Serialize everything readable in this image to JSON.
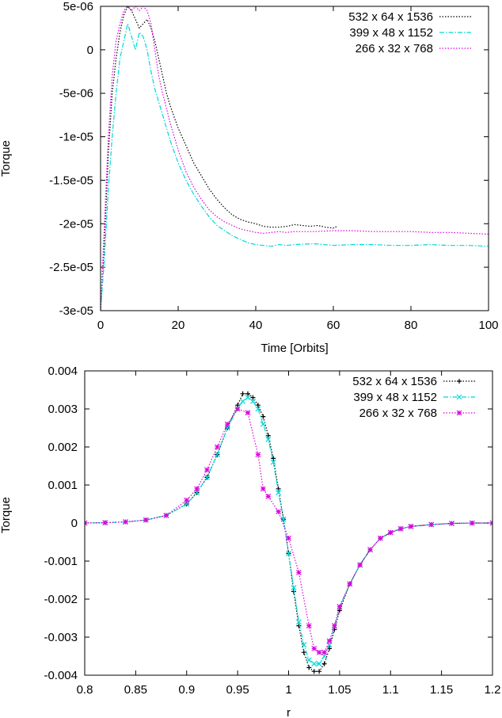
{
  "chart_data": [
    {
      "type": "line",
      "xlabel": "Time [Orbits]",
      "ylabel": "Torque",
      "xlim": [
        0,
        100
      ],
      "ylim": [
        -3e-05,
        5e-06
      ],
      "xticks": [
        0,
        20,
        40,
        60,
        80,
        100
      ],
      "xtick_labels": [
        "0",
        "20",
        "40",
        "60",
        "80",
        "100"
      ],
      "yticks": [
        5e-06,
        0,
        -5e-06,
        -1e-05,
        -1.5e-05,
        -2e-05,
        -2.5e-05,
        -3e-05
      ],
      "ytick_labels": [
        "5e-06",
        "0",
        "-5e-06",
        "-1e-05",
        "-1.5e-05",
        "-2e-05",
        "-2.5e-05",
        "-3e-05"
      ],
      "grid": false,
      "legend_position": "top-right",
      "series": [
        {
          "name": "532 x 64 x 1536",
          "color": "#000000",
          "style": "dotted",
          "x": [
            0,
            1,
            2,
            3,
            4,
            5,
            6,
            7,
            8,
            9,
            10,
            11,
            12,
            13,
            14,
            15,
            16,
            17,
            18,
            20,
            22,
            24,
            26,
            28,
            30,
            32,
            34,
            36,
            38,
            40,
            42,
            44,
            46,
            48,
            50,
            52,
            54,
            56,
            58,
            60,
            61
          ],
          "y": [
            -3e-05,
            -2.2e-05,
            -1.2e-05,
            -5e-06,
            -1e-06,
            2e-06,
            4e-06,
            5e-06,
            4.5e-06,
            3.5e-06,
            2.5e-06,
            3e-06,
            3.5e-06,
            2.5e-06,
            1e-06,
            -1e-06,
            -3e-06,
            -5e-06,
            -6.5e-06,
            -9e-06,
            -1.1e-05,
            -1.3e-05,
            -1.45e-05,
            -1.6e-05,
            -1.72e-05,
            -1.82e-05,
            -1.9e-05,
            -1.95e-05,
            -1.98e-05,
            -2e-05,
            -2.03e-05,
            -2.04e-05,
            -2.04e-05,
            -2.03e-05,
            -2.01e-05,
            -2.02e-05,
            -2.03e-05,
            -2.02e-05,
            -2.04e-05,
            -2.05e-05,
            -2.03e-05
          ]
        },
        {
          "name": "399 x 48 x 1152",
          "color": "#00d8d8",
          "style": "dash-dot",
          "x": [
            0,
            1,
            2,
            3,
            4,
            5,
            6,
            7,
            8,
            9,
            10,
            11,
            12,
            13,
            14,
            15,
            16,
            18,
            20,
            22,
            24,
            26,
            28,
            30,
            32,
            34,
            36,
            38,
            40,
            42,
            44,
            46,
            48,
            50,
            55,
            60,
            65,
            70,
            75,
            80,
            85,
            90,
            95,
            100
          ],
          "y": [
            -3e-05,
            -2.4e-05,
            -1.6e-05,
            -1e-05,
            -5e-06,
            -1e-06,
            1e-06,
            3e-06,
            1.5e-06,
            0,
            2e-06,
            1.5e-06,
            0,
            -2.5e-06,
            -4.5e-06,
            -6e-06,
            -7.5e-06,
            -1.05e-05,
            -1.3e-05,
            -1.5e-05,
            -1.66e-05,
            -1.8e-05,
            -1.92e-05,
            -2.02e-05,
            -2.08e-05,
            -2.14e-05,
            -2.18e-05,
            -2.22e-05,
            -2.24e-05,
            -2.25e-05,
            -2.26e-05,
            -2.24e-05,
            -2.25e-05,
            -2.24e-05,
            -2.23e-05,
            -2.25e-05,
            -2.24e-05,
            -2.24e-05,
            -2.25e-05,
            -2.25e-05,
            -2.24e-05,
            -2.25e-05,
            -2.25e-05,
            -2.26e-05
          ]
        },
        {
          "name": "266 x 32 x 768",
          "color": "#e000e0",
          "style": "dotted",
          "x": [
            0,
            1,
            2,
            3,
            4,
            5,
            6,
            7,
            8,
            9,
            10,
            11,
            12,
            13,
            14,
            15,
            16,
            18,
            20,
            22,
            24,
            26,
            28,
            30,
            32,
            34,
            36,
            38,
            40,
            42,
            44,
            46,
            48,
            50,
            55,
            60,
            65,
            70,
            75,
            80,
            85,
            90,
            95,
            100
          ],
          "y": [
            -3e-05,
            -2e-05,
            -1e-05,
            -3e-06,
            1e-06,
            3e-06,
            4.5e-06,
            5e-06,
            4.5e-06,
            5e-06,
            4.5e-06,
            5e-06,
            4.5e-06,
            3e-06,
            0,
            -3e-06,
            -5e-06,
            -8.5e-06,
            -1.15e-05,
            -1.4e-05,
            -1.58e-05,
            -1.72e-05,
            -1.84e-05,
            -1.92e-05,
            -1.98e-05,
            -2.02e-05,
            -2.06e-05,
            -2.08e-05,
            -2.1e-05,
            -2.11e-05,
            -2.1e-05,
            -2.09e-05,
            -2.1e-05,
            -2.09e-05,
            -2.09e-05,
            -2.08e-05,
            -2.08e-05,
            -2.09e-05,
            -2.09e-05,
            -2.09e-05,
            -2.1e-05,
            -2.1e-05,
            -2.11e-05,
            -2.12e-05
          ]
        }
      ]
    },
    {
      "type": "line",
      "xlabel": "r",
      "ylabel": "Torque",
      "xlim": [
        0.8,
        1.2
      ],
      "ylim": [
        -0.004,
        0.004
      ],
      "xticks": [
        0.8,
        0.85,
        0.9,
        0.95,
        1,
        1.05,
        1.1,
        1.15,
        1.2
      ],
      "xtick_labels": [
        "0.8",
        "0.85",
        "0.9",
        "0.95",
        "1",
        "1.05",
        "1.1",
        "1.15",
        "1.2"
      ],
      "yticks": [
        0.004,
        0.003,
        0.002,
        0.001,
        0,
        -0.001,
        -0.002,
        -0.003,
        -0.004
      ],
      "ytick_labels": [
        "0.004",
        "0.003",
        "0.002",
        "0.001",
        "0",
        "-0.001",
        "-0.002",
        "-0.003",
        "-0.004"
      ],
      "grid": false,
      "legend_position": "top-right",
      "series": [
        {
          "name": "532 x 64 x 1536",
          "color": "#000000",
          "style": "dotted",
          "marker": "+",
          "x": [
            0.8,
            0.82,
            0.84,
            0.86,
            0.88,
            0.9,
            0.91,
            0.92,
            0.93,
            0.94,
            0.95,
            0.955,
            0.96,
            0.965,
            0.97,
            0.975,
            0.98,
            0.985,
            0.99,
            0.995,
            1.0,
            1.005,
            1.01,
            1.015,
            1.02,
            1.025,
            1.03,
            1.035,
            1.04,
            1.045,
            1.05,
            1.06,
            1.07,
            1.08,
            1.09,
            1.1,
            1.11,
            1.12,
            1.14,
            1.16,
            1.18,
            1.2
          ],
          "y": [
            0,
            1e-05,
            3e-05,
            8e-05,
            0.0002,
            0.0005,
            0.0008,
            0.0012,
            0.0018,
            0.0025,
            0.0031,
            0.0034,
            0.0034,
            0.0033,
            0.0031,
            0.0028,
            0.0023,
            0.0017,
            0.0009,
            0.0001,
            -0.0008,
            -0.0018,
            -0.0027,
            -0.0034,
            -0.0038,
            -0.0039,
            -0.0039,
            -0.0037,
            -0.0033,
            -0.0028,
            -0.0023,
            -0.0016,
            -0.0011,
            -0.0007,
            -0.0004,
            -0.00025,
            -0.00015,
            -9e-05,
            -4e-05,
            -1e-05,
            0,
            0
          ]
        },
        {
          "name": "399 x 48 x 1152",
          "color": "#00d8d8",
          "style": "dash-dot",
          "marker": "x",
          "x": [
            0.8,
            0.82,
            0.84,
            0.86,
            0.88,
            0.9,
            0.91,
            0.92,
            0.93,
            0.94,
            0.95,
            0.955,
            0.96,
            0.965,
            0.97,
            0.975,
            0.98,
            0.985,
            0.99,
            0.995,
            1.0,
            1.005,
            1.01,
            1.015,
            1.02,
            1.025,
            1.03,
            1.035,
            1.04,
            1.045,
            1.05,
            1.06,
            1.07,
            1.08,
            1.09,
            1.1,
            1.11,
            1.12,
            1.14,
            1.16,
            1.18,
            1.2
          ],
          "y": [
            0,
            1e-05,
            3e-05,
            8e-05,
            0.0002,
            0.0005,
            0.0008,
            0.0012,
            0.0018,
            0.0025,
            0.003,
            0.0032,
            0.0033,
            0.0032,
            0.003,
            0.0026,
            0.0022,
            0.0016,
            0.0008,
            0.0001,
            -0.0008,
            -0.0017,
            -0.0026,
            -0.0032,
            -0.0036,
            -0.0037,
            -0.0037,
            -0.0035,
            -0.0032,
            -0.0027,
            -0.0022,
            -0.0016,
            -0.0011,
            -0.0007,
            -0.0004,
            -0.00025,
            -0.00015,
            -9e-05,
            -4e-05,
            -1e-05,
            0,
            0
          ]
        },
        {
          "name": "266 x 32 x 768",
          "color": "#e000e0",
          "style": "dotted",
          "marker": "*",
          "x": [
            0.8,
            0.82,
            0.84,
            0.86,
            0.88,
            0.9,
            0.91,
            0.92,
            0.93,
            0.94,
            0.95,
            0.96,
            0.97,
            0.975,
            0.98,
            0.99,
            1.0,
            1.01,
            1.02,
            1.025,
            1.03,
            1.035,
            1.04,
            1.045,
            1.05,
            1.06,
            1.07,
            1.08,
            1.09,
            1.1,
            1.11,
            1.12,
            1.14,
            1.16,
            1.18,
            1.2
          ],
          "y": [
            0,
            1e-05,
            3e-05,
            8e-05,
            0.0002,
            0.0006,
            0.0009,
            0.0014,
            0.002,
            0.0026,
            0.003,
            0.0029,
            0.0018,
            0.0009,
            0.0007,
            0.0003,
            -0.0004,
            -0.0013,
            -0.0027,
            -0.0033,
            -0.0034,
            -0.0034,
            -0.0031,
            -0.0027,
            -0.0022,
            -0.0016,
            -0.0011,
            -0.0007,
            -0.0004,
            -0.00025,
            -0.00015,
            -9e-05,
            -4e-05,
            -1e-05,
            0,
            0
          ]
        }
      ]
    }
  ]
}
